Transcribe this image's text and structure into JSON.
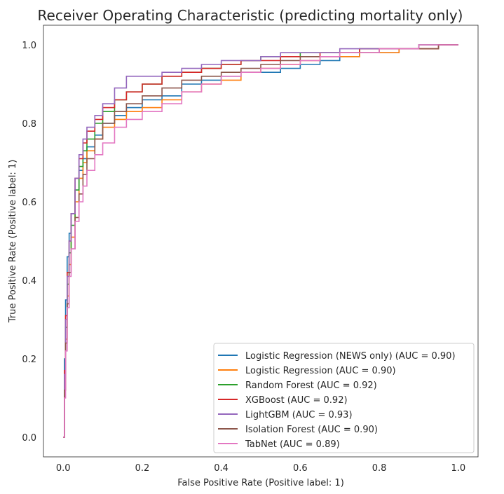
{
  "chart_data": {
    "type": "line",
    "title": "Receiver Operating Characteristic (predicting mortality only)",
    "xlabel": "False Positive Rate (Positive label: 1)",
    "ylabel": "True Positive Rate (Positive label: 1)",
    "xlim": [
      -0.05,
      1.05
    ],
    "ylim": [
      -0.05,
      1.05
    ],
    "xticks": [
      "0.0",
      "0.2",
      "0.4",
      "0.6",
      "0.8",
      "1.0"
    ],
    "yticks": [
      "0.0",
      "0.2",
      "0.4",
      "0.6",
      "0.8",
      "1.0"
    ],
    "grid": false,
    "legend_position": "lower-right",
    "series": [
      {
        "name": "Logistic Regression (NEWS only) (AUC = 0.90)",
        "color": "#1f77b4",
        "x": [
          0.0,
          0.003,
          0.006,
          0.01,
          0.015,
          0.02,
          0.03,
          0.04,
          0.05,
          0.06,
          0.08,
          0.1,
          0.13,
          0.16,
          0.2,
          0.25,
          0.3,
          0.35,
          0.4,
          0.45,
          0.5,
          0.55,
          0.6,
          0.65,
          0.7,
          0.75,
          0.8,
          0.85,
          0.9,
          0.95,
          1.0
        ],
        "y": [
          0.0,
          0.2,
          0.35,
          0.46,
          0.52,
          0.57,
          0.63,
          0.68,
          0.71,
          0.74,
          0.77,
          0.8,
          0.82,
          0.84,
          0.86,
          0.87,
          0.9,
          0.91,
          0.92,
          0.93,
          0.93,
          0.94,
          0.95,
          0.96,
          0.97,
          0.98,
          0.98,
          0.99,
          0.99,
          1.0,
          1.0
        ]
      },
      {
        "name": "Logistic Regression (AUC = 0.90)",
        "color": "#ff7f0e",
        "x": [
          0.0,
          0.003,
          0.006,
          0.01,
          0.015,
          0.02,
          0.03,
          0.04,
          0.05,
          0.06,
          0.08,
          0.1,
          0.13,
          0.16,
          0.2,
          0.25,
          0.3,
          0.35,
          0.4,
          0.45,
          0.5,
          0.55,
          0.6,
          0.65,
          0.7,
          0.75,
          0.8,
          0.85,
          0.9,
          0.95,
          1.0
        ],
        "y": [
          0.0,
          0.12,
          0.25,
          0.36,
          0.44,
          0.51,
          0.6,
          0.66,
          0.7,
          0.73,
          0.76,
          0.79,
          0.81,
          0.83,
          0.84,
          0.86,
          0.88,
          0.9,
          0.91,
          0.93,
          0.94,
          0.95,
          0.96,
          0.97,
          0.97,
          0.98,
          0.98,
          0.99,
          0.99,
          1.0,
          1.0
        ]
      },
      {
        "name": "Random Forest (AUC = 0.92)",
        "color": "#2ca02c",
        "x": [
          0.0,
          0.003,
          0.006,
          0.01,
          0.015,
          0.02,
          0.03,
          0.04,
          0.05,
          0.06,
          0.08,
          0.1,
          0.13,
          0.16,
          0.2,
          0.25,
          0.3,
          0.35,
          0.4,
          0.45,
          0.5,
          0.55,
          0.6,
          0.65,
          0.7,
          0.75,
          0.8,
          0.85,
          0.9,
          0.95,
          1.0
        ],
        "y": [
          0.0,
          0.15,
          0.28,
          0.39,
          0.47,
          0.54,
          0.63,
          0.69,
          0.73,
          0.76,
          0.8,
          0.83,
          0.86,
          0.88,
          0.9,
          0.92,
          0.93,
          0.94,
          0.95,
          0.96,
          0.97,
          0.97,
          0.98,
          0.98,
          0.98,
          0.99,
          0.99,
          0.99,
          1.0,
          1.0,
          1.0
        ]
      },
      {
        "name": "XGBoost (AUC = 0.92)",
        "color": "#d62728",
        "x": [
          0.0,
          0.003,
          0.006,
          0.01,
          0.015,
          0.02,
          0.03,
          0.04,
          0.05,
          0.06,
          0.08,
          0.1,
          0.13,
          0.16,
          0.2,
          0.25,
          0.3,
          0.35,
          0.4,
          0.45,
          0.5,
          0.55,
          0.6,
          0.65,
          0.7,
          0.75,
          0.8,
          0.85,
          0.9,
          0.95,
          1.0
        ],
        "y": [
          0.0,
          0.17,
          0.31,
          0.42,
          0.5,
          0.57,
          0.66,
          0.71,
          0.75,
          0.78,
          0.81,
          0.84,
          0.86,
          0.88,
          0.9,
          0.92,
          0.93,
          0.94,
          0.95,
          0.96,
          0.96,
          0.97,
          0.97,
          0.98,
          0.98,
          0.99,
          0.99,
          0.99,
          0.99,
          1.0,
          1.0
        ]
      },
      {
        "name": "LightGBM (AUC = 0.93)",
        "color": "#9467bd",
        "x": [
          0.0,
          0.003,
          0.006,
          0.01,
          0.015,
          0.02,
          0.03,
          0.04,
          0.05,
          0.06,
          0.08,
          0.1,
          0.13,
          0.16,
          0.2,
          0.25,
          0.3,
          0.35,
          0.4,
          0.45,
          0.5,
          0.55,
          0.6,
          0.65,
          0.7,
          0.75,
          0.8,
          0.85,
          0.9,
          0.95,
          1.0
        ],
        "y": [
          0.0,
          0.16,
          0.3,
          0.41,
          0.5,
          0.57,
          0.66,
          0.72,
          0.76,
          0.79,
          0.82,
          0.85,
          0.89,
          0.92,
          0.92,
          0.93,
          0.94,
          0.95,
          0.96,
          0.96,
          0.97,
          0.98,
          0.98,
          0.98,
          0.99,
          0.99,
          0.99,
          0.99,
          1.0,
          1.0,
          1.0
        ]
      },
      {
        "name": "Isolation Forest (AUC = 0.90)",
        "color": "#8c564b",
        "x": [
          0.0,
          0.003,
          0.006,
          0.01,
          0.015,
          0.02,
          0.03,
          0.04,
          0.05,
          0.06,
          0.08,
          0.1,
          0.13,
          0.16,
          0.2,
          0.25,
          0.3,
          0.35,
          0.4,
          0.45,
          0.5,
          0.55,
          0.6,
          0.65,
          0.7,
          0.75,
          0.8,
          0.85,
          0.9,
          0.95,
          1.0
        ],
        "y": [
          0.0,
          0.12,
          0.24,
          0.34,
          0.42,
          0.48,
          0.56,
          0.62,
          0.67,
          0.71,
          0.76,
          0.8,
          0.83,
          0.85,
          0.87,
          0.89,
          0.91,
          0.92,
          0.93,
          0.94,
          0.95,
          0.96,
          0.97,
          0.97,
          0.98,
          0.98,
          0.99,
          0.99,
          0.99,
          1.0,
          1.0
        ]
      },
      {
        "name": "TabNet (AUC = 0.89)",
        "color": "#e377c2",
        "x": [
          0.0,
          0.003,
          0.006,
          0.01,
          0.015,
          0.02,
          0.03,
          0.04,
          0.05,
          0.06,
          0.08,
          0.1,
          0.13,
          0.16,
          0.2,
          0.25,
          0.3,
          0.35,
          0.4,
          0.45,
          0.5,
          0.55,
          0.6,
          0.65,
          0.7,
          0.75,
          0.8,
          0.85,
          0.9,
          0.95,
          1.0
        ],
        "y": [
          0.0,
          0.1,
          0.22,
          0.33,
          0.41,
          0.48,
          0.55,
          0.6,
          0.64,
          0.68,
          0.72,
          0.75,
          0.79,
          0.81,
          0.83,
          0.85,
          0.88,
          0.9,
          0.92,
          0.93,
          0.94,
          0.95,
          0.96,
          0.97,
          0.98,
          0.98,
          0.99,
          0.99,
          1.0,
          1.0,
          1.0
        ]
      }
    ]
  }
}
